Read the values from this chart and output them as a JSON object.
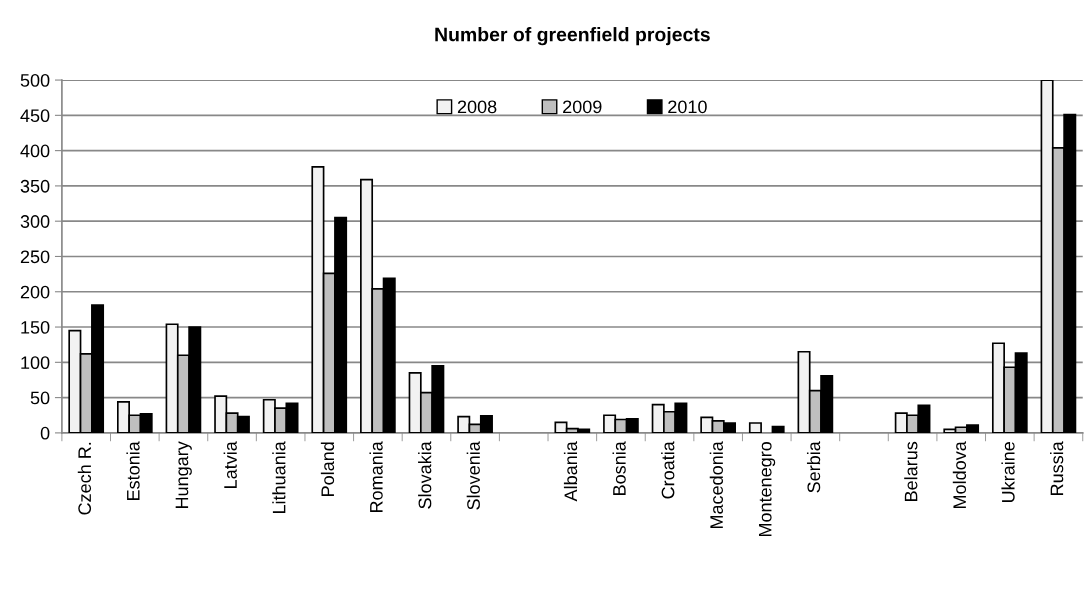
{
  "chart_data": {
    "type": "bar",
    "title": "Number of greenfield projects",
    "categories": [
      "Czech R.",
      "Estonia",
      "Hungary",
      "Latvia",
      "Lithuania",
      "Poland",
      "Romania",
      "Slovakia",
      "Slovenia",
      null,
      "Albania",
      "Bosnia",
      "Croatia",
      "Macedonia",
      "Montenegro",
      "Serbia",
      null,
      "Belarus",
      "Moldova",
      "Ukraine",
      "Russia"
    ],
    "series": [
      {
        "name": "2008",
        "color": "#f2f2f2",
        "values": [
          145,
          44,
          154,
          52,
          47,
          377,
          359,
          85,
          23,
          null,
          15,
          25,
          40,
          22,
          14,
          115,
          null,
          28,
          5,
          127,
          500
        ]
      },
      {
        "name": "2009",
        "color": "#bfbfbf",
        "values": [
          112,
          25,
          110,
          28,
          35,
          226,
          204,
          57,
          12,
          null,
          6,
          19,
          30,
          17,
          null,
          60,
          null,
          25,
          8,
          93,
          404
        ]
      },
      {
        "name": "2010",
        "color": "#000000",
        "values": [
          181,
          27,
          150,
          23,
          42,
          305,
          219,
          95,
          24,
          null,
          5,
          20,
          42,
          14,
          9,
          81,
          null,
          39,
          11,
          113,
          451
        ]
      }
    ],
    "ylim": [
      0,
      500
    ],
    "yticks": [
      0,
      50,
      100,
      150,
      200,
      250,
      300,
      350,
      400,
      450,
      500
    ],
    "grid": "y",
    "legend": "top"
  }
}
